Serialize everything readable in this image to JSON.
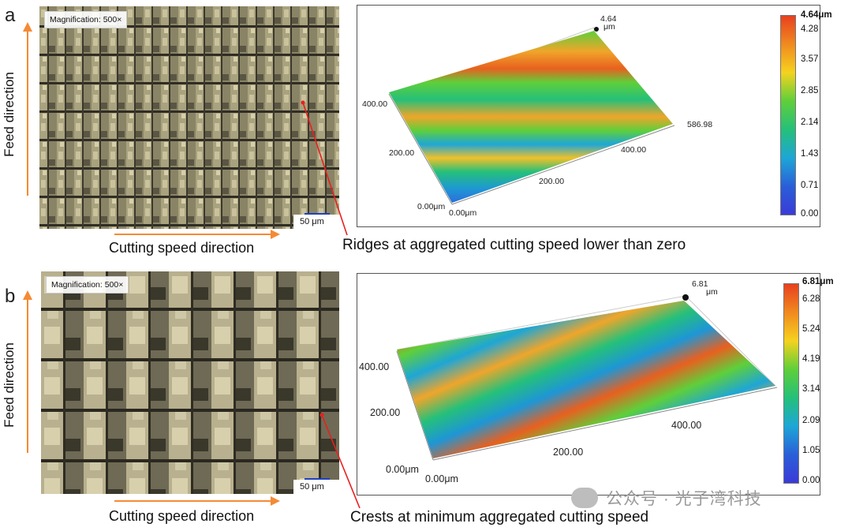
{
  "panels": [
    {
      "letter": "a",
      "feed_label": "Feed direction",
      "magnification": "Magnification: 500×",
      "scale_bar": "50 μm",
      "cutting_label": "Cutting speed direction",
      "annotation": "Ridges at aggregated cutting speed lower than zero",
      "peak_label": "4.64",
      "peak_unit": "μm",
      "axis_labels": [
        "400.00",
        "200.00",
        "0.00μm",
        "0.00μm",
        "200.00",
        "400.00",
        "586.98"
      ],
      "colorbar_max": "4.64μm",
      "colorbar_ticks": [
        "4.28",
        "3.57",
        "2.85",
        "2.14",
        "1.43",
        "0.71",
        "0.00"
      ]
    },
    {
      "letter": "b",
      "feed_label": "Feed direction",
      "magnification": "Magnification: 500×",
      "scale_bar": "50 μm",
      "cutting_label": "Cutting speed direction",
      "annotation": "Crests at minimum aggregated cutting speed",
      "peak_label": "6.81",
      "peak_unit": "μm",
      "axis_labels": [
        "400.00",
        "200.00",
        "0.00μm",
        "0.00μm",
        "200.00",
        "400.00"
      ],
      "colorbar_max": "6.81μm",
      "colorbar_ticks": [
        "6.28",
        "5.24",
        "4.19",
        "3.14",
        "2.09",
        "1.05",
        "0.00"
      ]
    }
  ],
  "colors": {
    "arrow": "#f58a34",
    "pointer": "#e8201f",
    "colormap": [
      "#e8401f",
      "#f08a1f",
      "#f5d21f",
      "#5fcf3a",
      "#25c07a",
      "#1ea6d6",
      "#2a5fd8",
      "#3a3ad8"
    ]
  },
  "watermark": "公众号 · 光子湾科技"
}
